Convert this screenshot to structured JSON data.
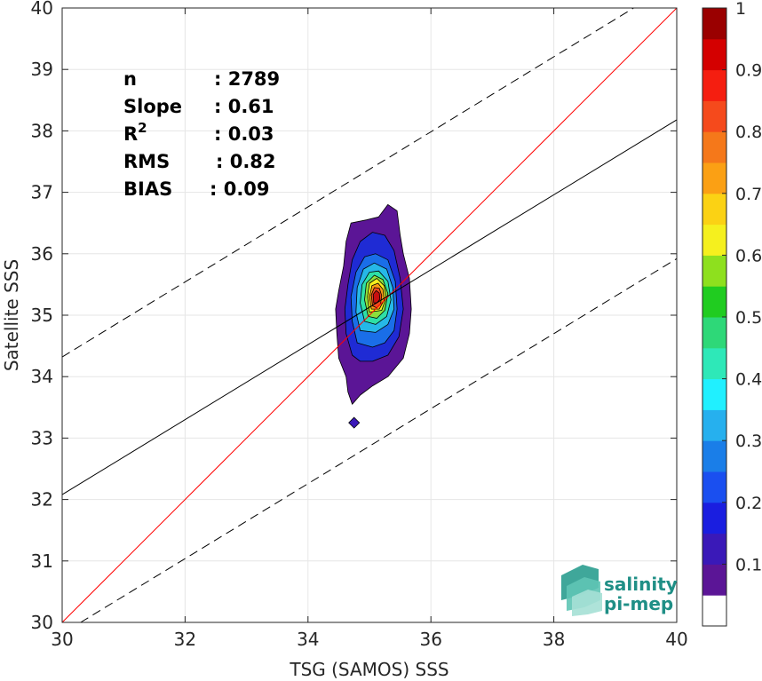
{
  "chart_data": {
    "type": "scatter",
    "subtype": "density-contour",
    "xlabel": "TSG (SAMOS) SSS",
    "ylabel": "Satellite SSS",
    "xlim": [
      30,
      40
    ],
    "ylim": [
      30,
      40
    ],
    "xticks": [
      30,
      32,
      34,
      36,
      38,
      40
    ],
    "yticks": [
      30,
      31,
      32,
      33,
      34,
      35,
      36,
      37,
      38,
      39,
      40
    ],
    "grid": true,
    "stats": [
      {
        "label": "n",
        "value": ": 2789"
      },
      {
        "label": "Slope",
        "value": ": 0.61"
      },
      {
        "label": "R",
        "sup": "2",
        "value": ": 0.03"
      },
      {
        "label": "RMS",
        "value": ": 0.82"
      },
      {
        "label": "BIAS",
        "value": ": 0.09"
      }
    ],
    "reference_lines": [
      {
        "name": "1:1",
        "color": "#ff0000",
        "style": "solid",
        "x": [
          30,
          40
        ],
        "y": [
          30,
          40
        ]
      },
      {
        "name": "fit",
        "color": "#000000",
        "style": "solid",
        "x": [
          30,
          40
        ],
        "y": [
          32.08,
          38.18
        ]
      },
      {
        "name": "upper",
        "color": "#000000",
        "style": "dashed",
        "x": [
          30,
          39.3
        ],
        "y": [
          34.32,
          40
        ]
      },
      {
        "name": "lower",
        "color": "#000000",
        "style": "dashed",
        "x": [
          30.3,
          40
        ],
        "y": [
          30,
          35.92
        ]
      }
    ],
    "density": {
      "center": [
        35.1,
        35.35
      ],
      "outlier_point": [
        34.75,
        33.25
      ],
      "contours": [
        {
          "level": 0.05,
          "color": "#5b1596",
          "points": [
            [
              34.72,
              33.55
            ],
            [
              34.65,
              33.75
            ],
            [
              34.62,
              34.0
            ],
            [
              34.5,
              34.3
            ],
            [
              34.47,
              34.7
            ],
            [
              34.45,
              35.1
            ],
            [
              34.5,
              35.4
            ],
            [
              34.58,
              35.8
            ],
            [
              34.62,
              36.2
            ],
            [
              34.7,
              36.5
            ],
            [
              34.95,
              36.55
            ],
            [
              35.15,
              36.6
            ],
            [
              35.3,
              36.8
            ],
            [
              35.45,
              36.7
            ],
            [
              35.5,
              36.3
            ],
            [
              35.55,
              36.0
            ],
            [
              35.65,
              35.6
            ],
            [
              35.68,
              35.1
            ],
            [
              35.65,
              34.7
            ],
            [
              35.55,
              34.3
            ],
            [
              35.3,
              34.0
            ],
            [
              35.05,
              33.85
            ],
            [
              34.85,
              33.7
            ]
          ]
        },
        {
          "level": 0.15,
          "color": "#1f2bd4",
          "points": [
            [
              34.72,
              34.35
            ],
            [
              34.62,
              34.7
            ],
            [
              34.6,
              35.1
            ],
            [
              34.65,
              35.5
            ],
            [
              34.72,
              35.9
            ],
            [
              34.85,
              36.2
            ],
            [
              35.05,
              36.35
            ],
            [
              35.25,
              36.3
            ],
            [
              35.4,
              36.05
            ],
            [
              35.5,
              35.6
            ],
            [
              35.55,
              35.1
            ],
            [
              35.48,
              34.65
            ],
            [
              35.3,
              34.35
            ],
            [
              35.05,
              34.25
            ],
            [
              34.85,
              34.25
            ]
          ]
        },
        {
          "level": 0.25,
          "color": "#1a6ee8",
          "points": [
            [
              34.8,
              34.55
            ],
            [
              34.72,
              34.9
            ],
            [
              34.7,
              35.3
            ],
            [
              34.78,
              35.7
            ],
            [
              34.92,
              35.95
            ],
            [
              35.1,
              36.0
            ],
            [
              35.3,
              35.9
            ],
            [
              35.42,
              35.55
            ],
            [
              35.45,
              35.1
            ],
            [
              35.4,
              34.75
            ],
            [
              35.25,
              34.55
            ],
            [
              35.05,
              34.48
            ]
          ]
        },
        {
          "level": 0.35,
          "color": "#26b8e8",
          "points": [
            [
              34.85,
              34.75
            ],
            [
              34.78,
              35.05
            ],
            [
              34.8,
              35.45
            ],
            [
              34.9,
              35.75
            ],
            [
              35.08,
              35.85
            ],
            [
              35.28,
              35.75
            ],
            [
              35.38,
              35.45
            ],
            [
              35.4,
              35.1
            ],
            [
              35.3,
              34.85
            ],
            [
              35.1,
              34.72
            ]
          ]
        },
        {
          "level": 0.45,
          "color": "#2ee0a6",
          "points": [
            [
              34.92,
              34.9
            ],
            [
              34.85,
              35.2
            ],
            [
              34.88,
              35.5
            ],
            [
              35.0,
              35.7
            ],
            [
              35.15,
              35.72
            ],
            [
              35.3,
              35.55
            ],
            [
              35.35,
              35.25
            ],
            [
              35.28,
              34.98
            ],
            [
              35.1,
              34.85
            ]
          ]
        },
        {
          "level": 0.55,
          "color": "#8be03c",
          "points": [
            [
              34.98,
              34.98
            ],
            [
              34.92,
              35.25
            ],
            [
              34.95,
              35.52
            ],
            [
              35.08,
              35.65
            ],
            [
              35.22,
              35.58
            ],
            [
              35.3,
              35.35
            ],
            [
              35.25,
              35.08
            ],
            [
              35.12,
              34.95
            ]
          ]
        },
        {
          "level": 0.65,
          "color": "#f5f01e",
          "points": [
            [
              35.0,
              35.05
            ],
            [
              34.97,
              35.3
            ],
            [
              35.0,
              35.52
            ],
            [
              35.12,
              35.6
            ],
            [
              35.24,
              35.48
            ],
            [
              35.27,
              35.28
            ],
            [
              35.2,
              35.08
            ]
          ]
        },
        {
          "level": 0.75,
          "color": "#fb9b14",
          "points": [
            [
              35.03,
              35.1
            ],
            [
              35.0,
              35.3
            ],
            [
              35.04,
              35.48
            ],
            [
              35.14,
              35.52
            ],
            [
              35.22,
              35.42
            ],
            [
              35.24,
              35.25
            ],
            [
              35.16,
              35.1
            ]
          ]
        },
        {
          "level": 0.85,
          "color": "#f14a1c",
          "points": [
            [
              35.05,
              35.15
            ],
            [
              35.03,
              35.33
            ],
            [
              35.08,
              35.45
            ],
            [
              35.16,
              35.44
            ],
            [
              35.2,
              35.32
            ],
            [
              35.18,
              35.18
            ],
            [
              35.12,
              35.12
            ]
          ]
        },
        {
          "level": 0.95,
          "color": "#c81010",
          "points": [
            [
              35.07,
              35.2
            ],
            [
              35.06,
              35.34
            ],
            [
              35.11,
              35.4
            ],
            [
              35.16,
              35.36
            ],
            [
              35.17,
              35.26
            ],
            [
              35.12,
              35.2
            ]
          ]
        }
      ]
    },
    "colorbar": {
      "ticks": [
        0.1,
        0.2,
        0.3,
        0.4,
        0.5,
        0.6,
        0.7,
        0.8,
        0.9,
        1
      ],
      "tick_labels": [
        "0.1",
        "0.2",
        "0.3",
        "0.4",
        "0.5",
        "0.6",
        "0.7",
        "0.8",
        "0.9",
        "1"
      ],
      "colors": [
        "#ffffff",
        "#5b1596",
        "#3a19b8",
        "#1a1ee0",
        "#1a4ff0",
        "#1a7ee8",
        "#26b0ee",
        "#20f0ff",
        "#2ee8b8",
        "#2ed878",
        "#20cc20",
        "#8ee01e",
        "#f5f01e",
        "#fbd214",
        "#fba014",
        "#f5781a",
        "#f54a1c",
        "#f51e10",
        "#d40000",
        "#9a0000"
      ]
    }
  },
  "logo": {
    "line1": "salinity",
    "line2": "pi-mep",
    "color": "#1f8f86"
  }
}
